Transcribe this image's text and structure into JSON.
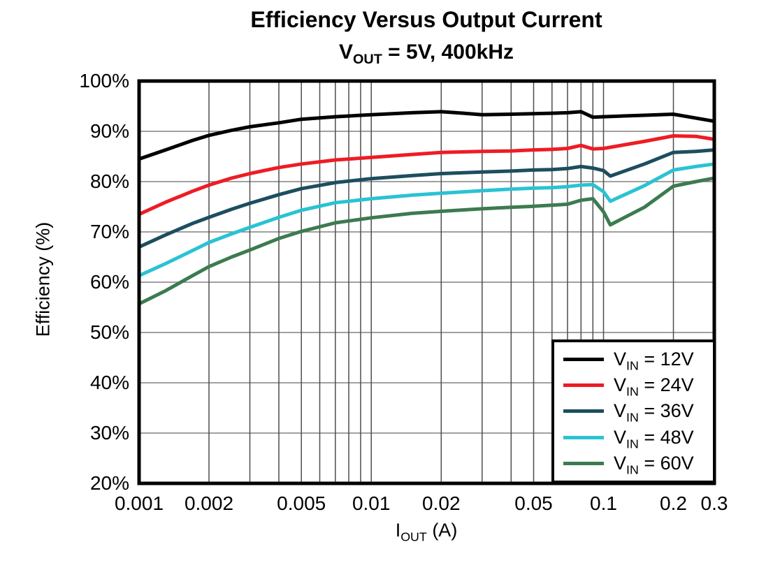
{
  "page": {
    "background": "#ffffff"
  },
  "chart_data": {
    "type": "line",
    "title": "Efficiency Versus Output Current",
    "subtitle": "VOUT = 5V, 400kHz",
    "subtitle_parts": {
      "pre": "V",
      "sub": "OUT",
      "post": " = 5V, 400kHz"
    },
    "xlabel": "IOUT (A)",
    "xlabel_parts": {
      "pre": "I",
      "sub": "OUT",
      "post": " (A)"
    },
    "ylabel": "Efficiency (%)",
    "x_scale": "log",
    "xlim": [
      0.001,
      0.3
    ],
    "ylim": [
      20,
      100
    ],
    "grid": true,
    "legend_position": "bottom-right",
    "x_ticks": [
      0.001,
      0.002,
      0.005,
      0.01,
      0.02,
      0.05,
      0.1,
      0.2,
      0.3
    ],
    "x_tick_labels": [
      "0.001",
      "0.002",
      "0.005",
      "0.01",
      "0.02",
      "0.05",
      "0.1",
      "0.2",
      "0.3"
    ],
    "y_ticks": [
      20,
      30,
      40,
      50,
      60,
      70,
      80,
      90,
      100
    ],
    "y_tick_labels": [
      "20%",
      "30%",
      "40%",
      "50%",
      "60%",
      "70%",
      "80%",
      "90%",
      "100%"
    ],
    "x_gridlines": [
      0.002,
      0.003,
      0.004,
      0.005,
      0.006,
      0.007,
      0.008,
      0.009,
      0.01,
      0.02,
      0.03,
      0.04,
      0.05,
      0.06,
      0.07,
      0.08,
      0.09,
      0.1,
      0.2
    ],
    "y_gridlines": [
      30,
      40,
      50,
      60,
      70,
      80,
      90
    ],
    "colors": {
      "grid_vertical": "#4d4d4d",
      "grid_horizontal": "#808080",
      "axis_border": "#000000"
    },
    "line_width": 5,
    "series": [
      {
        "id": "vin-12v",
        "name": "VIN = 12V",
        "legend_parts": {
          "pre": "V",
          "sub": "IN",
          "post": " = 12V"
        },
        "color": "#000000",
        "points": [
          [
            0.001,
            84.5
          ],
          [
            0.0013,
            86.3
          ],
          [
            0.0017,
            88.2
          ],
          [
            0.002,
            89.2
          ],
          [
            0.0025,
            90.2
          ],
          [
            0.003,
            90.9
          ],
          [
            0.004,
            91.7
          ],
          [
            0.005,
            92.4
          ],
          [
            0.007,
            92.9
          ],
          [
            0.01,
            93.3
          ],
          [
            0.015,
            93.7
          ],
          [
            0.02,
            93.9
          ],
          [
            0.025,
            93.6
          ],
          [
            0.03,
            93.3
          ],
          [
            0.04,
            93.4
          ],
          [
            0.05,
            93.5
          ],
          [
            0.06,
            93.6
          ],
          [
            0.07,
            93.7
          ],
          [
            0.08,
            93.9
          ],
          [
            0.09,
            92.8
          ],
          [
            0.1,
            92.9
          ],
          [
            0.15,
            93.2
          ],
          [
            0.2,
            93.4
          ],
          [
            0.3,
            92.0
          ]
        ]
      },
      {
        "id": "vin-24v",
        "name": "VIN = 24V",
        "legend_parts": {
          "pre": "V",
          "sub": "IN",
          "post": " = 24V"
        },
        "color": "#ee1c24",
        "points": [
          [
            0.001,
            73.5
          ],
          [
            0.0013,
            75.9
          ],
          [
            0.0017,
            78.1
          ],
          [
            0.002,
            79.3
          ],
          [
            0.0025,
            80.7
          ],
          [
            0.003,
            81.6
          ],
          [
            0.004,
            82.8
          ],
          [
            0.005,
            83.5
          ],
          [
            0.007,
            84.3
          ],
          [
            0.01,
            84.8
          ],
          [
            0.015,
            85.4
          ],
          [
            0.02,
            85.8
          ],
          [
            0.03,
            86.0
          ],
          [
            0.04,
            86.1
          ],
          [
            0.05,
            86.3
          ],
          [
            0.06,
            86.4
          ],
          [
            0.07,
            86.6
          ],
          [
            0.08,
            87.2
          ],
          [
            0.09,
            86.5
          ],
          [
            0.1,
            86.6
          ],
          [
            0.15,
            88.0
          ],
          [
            0.2,
            89.1
          ],
          [
            0.25,
            89.0
          ],
          [
            0.3,
            88.4
          ]
        ]
      },
      {
        "id": "vin-36v",
        "name": "VIN = 36V",
        "legend_parts": {
          "pre": "V",
          "sub": "IN",
          "post": " = 36V"
        },
        "color": "#1c4e5e",
        "points": [
          [
            0.001,
            67.0
          ],
          [
            0.0013,
            69.4
          ],
          [
            0.0017,
            71.7
          ],
          [
            0.002,
            72.9
          ],
          [
            0.0025,
            74.5
          ],
          [
            0.003,
            75.7
          ],
          [
            0.004,
            77.4
          ],
          [
            0.005,
            78.6
          ],
          [
            0.007,
            79.8
          ],
          [
            0.01,
            80.6
          ],
          [
            0.015,
            81.2
          ],
          [
            0.02,
            81.6
          ],
          [
            0.03,
            81.9
          ],
          [
            0.04,
            82.1
          ],
          [
            0.05,
            82.3
          ],
          [
            0.06,
            82.4
          ],
          [
            0.07,
            82.6
          ],
          [
            0.08,
            83.0
          ],
          [
            0.09,
            82.7
          ],
          [
            0.1,
            82.2
          ],
          [
            0.107,
            81.1
          ],
          [
            0.15,
            83.5
          ],
          [
            0.2,
            85.8
          ],
          [
            0.25,
            86.0
          ],
          [
            0.3,
            86.3
          ]
        ]
      },
      {
        "id": "vin-48v",
        "name": "VIN = 48V",
        "legend_parts": {
          "pre": "V",
          "sub": "IN",
          "post": " = 48V"
        },
        "color": "#29c3d3",
        "points": [
          [
            0.001,
            61.3
          ],
          [
            0.0013,
            63.7
          ],
          [
            0.0017,
            66.3
          ],
          [
            0.002,
            67.9
          ],
          [
            0.0025,
            69.6
          ],
          [
            0.003,
            70.9
          ],
          [
            0.004,
            72.9
          ],
          [
            0.005,
            74.3
          ],
          [
            0.007,
            75.8
          ],
          [
            0.01,
            76.6
          ],
          [
            0.015,
            77.3
          ],
          [
            0.02,
            77.7
          ],
          [
            0.03,
            78.2
          ],
          [
            0.04,
            78.5
          ],
          [
            0.05,
            78.7
          ],
          [
            0.06,
            78.8
          ],
          [
            0.07,
            79.0
          ],
          [
            0.08,
            79.3
          ],
          [
            0.09,
            79.4
          ],
          [
            0.1,
            78.0
          ],
          [
            0.107,
            76.1
          ],
          [
            0.15,
            79.2
          ],
          [
            0.2,
            82.3
          ],
          [
            0.25,
            83.0
          ],
          [
            0.3,
            83.5
          ]
        ]
      },
      {
        "id": "vin-60v",
        "name": "VIN = 60V",
        "legend_parts": {
          "pre": "V",
          "sub": "IN",
          "post": " = 60V"
        },
        "color": "#3c7b50",
        "points": [
          [
            0.001,
            55.7
          ],
          [
            0.0013,
            58.3
          ],
          [
            0.0017,
            61.3
          ],
          [
            0.002,
            63.1
          ],
          [
            0.0025,
            65.0
          ],
          [
            0.003,
            66.4
          ],
          [
            0.004,
            68.7
          ],
          [
            0.005,
            70.1
          ],
          [
            0.007,
            71.8
          ],
          [
            0.01,
            72.8
          ],
          [
            0.015,
            73.7
          ],
          [
            0.02,
            74.1
          ],
          [
            0.03,
            74.6
          ],
          [
            0.04,
            74.9
          ],
          [
            0.05,
            75.1
          ],
          [
            0.06,
            75.3
          ],
          [
            0.07,
            75.5
          ],
          [
            0.08,
            76.3
          ],
          [
            0.09,
            76.6
          ],
          [
            0.1,
            74.0
          ],
          [
            0.107,
            71.4
          ],
          [
            0.15,
            74.9
          ],
          [
            0.2,
            79.1
          ],
          [
            0.25,
            80.0
          ],
          [
            0.3,
            80.7
          ]
        ]
      }
    ]
  }
}
